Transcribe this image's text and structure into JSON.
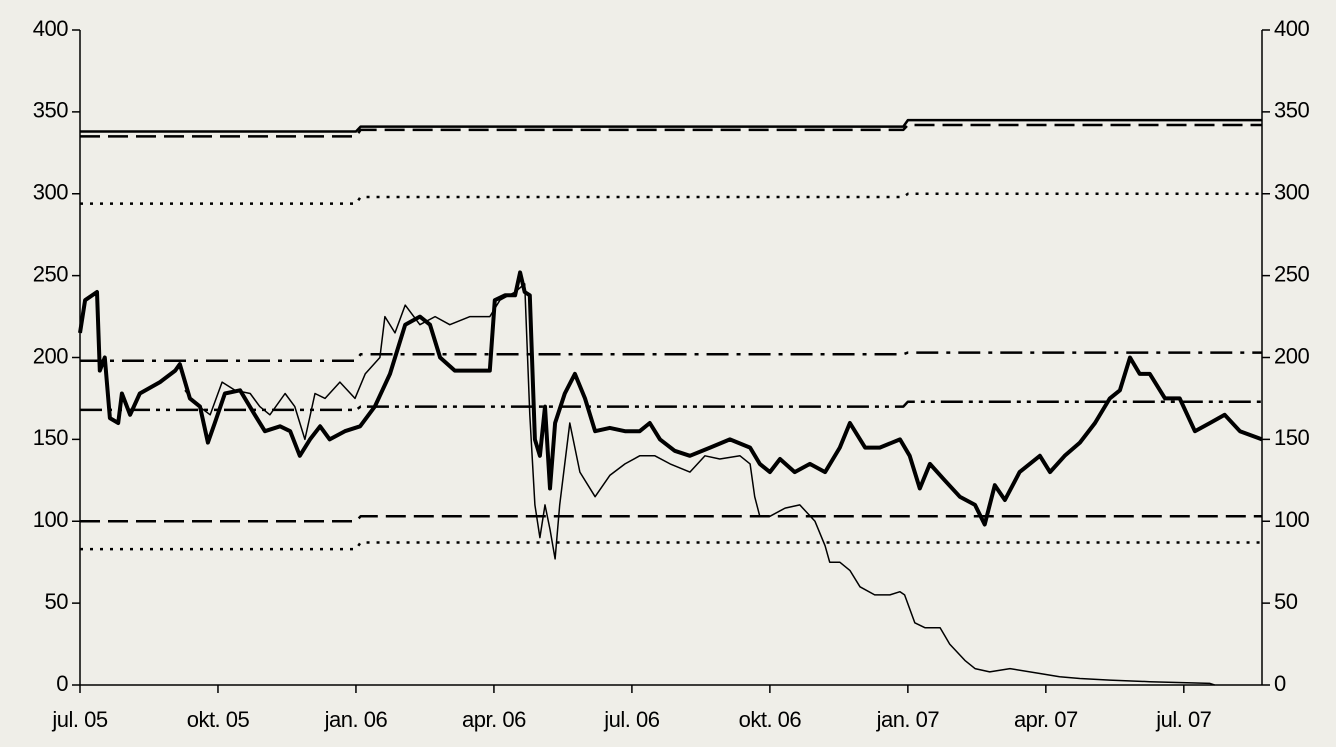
{
  "chart_data": {
    "type": "line",
    "xlim": [
      0,
      25.7
    ],
    "xticks": [
      {
        "value": 0,
        "label": "jul. 05"
      },
      {
        "value": 3,
        "label": "okt. 05"
      },
      {
        "value": 6,
        "label": "jan. 06"
      },
      {
        "value": 9,
        "label": "apr. 06"
      },
      {
        "value": 12,
        "label": "jul. 06"
      },
      {
        "value": 15,
        "label": "okt. 06"
      },
      {
        "value": 18,
        "label": "jan. 07"
      },
      {
        "value": 21,
        "label": "apr. 07"
      },
      {
        "value": 24,
        "label": "jul. 07"
      }
    ],
    "ylim": [
      0,
      400
    ],
    "yticks": [
      0,
      50,
      100,
      150,
      200,
      250,
      300,
      350,
      400
    ],
    "y2lim": [
      0,
      400
    ],
    "y2ticks": [
      0,
      50,
      100,
      150,
      200,
      250,
      300,
      350,
      400
    ],
    "series": [
      {
        "color": "#000000",
        "width": 4,
        "style": "solid",
        "x": [
          0,
          0.11,
          0.37,
          0.43,
          0.54,
          0.65,
          0.83,
          0.91,
          1.09,
          1.3,
          1.74,
          2.07,
          2.17,
          2.39,
          2.61,
          2.78,
          2.93,
          3.15,
          3.48,
          3.8,
          4.02,
          4.35,
          4.57,
          4.78,
          5,
          5.22,
          5.43,
          5.76,
          6.09,
          6.41,
          6.74,
          7.07,
          7.39,
          7.61,
          7.83,
          8.15,
          8.91,
          9.02,
          9.24,
          9.46,
          9.57,
          9.67,
          9.78,
          9.89,
          10,
          10.11,
          10.22,
          10.33,
          10.54,
          10.76,
          10.98,
          11.2,
          11.52,
          11.85,
          12.17,
          12.39,
          12.61,
          12.93,
          13.26,
          13.7,
          14.13,
          14.57,
          14.78,
          15,
          15.22,
          15.54,
          15.87,
          16.2,
          16.52,
          16.74,
          17.07,
          17.39,
          17.83,
          18.04,
          18.26,
          18.48,
          18.8,
          19.13,
          19.46,
          19.67,
          19.89,
          20.11,
          20.43,
          20.87,
          21.09,
          21.41,
          21.74,
          22.07,
          22.39,
          22.61,
          22.83,
          23.04,
          23.26,
          23.59,
          23.91,
          24.24,
          24.57,
          24.89,
          25.22,
          25.7
        ],
        "values": [
          215,
          235,
          240,
          192,
          200,
          163,
          160,
          178,
          165,
          178,
          185,
          192,
          196,
          175,
          170,
          148,
          160,
          178,
          180,
          165,
          155,
          158,
          155,
          140,
          150,
          158,
          150,
          155,
          158,
          170,
          190,
          220,
          225,
          220,
          200,
          192,
          192,
          235,
          238,
          238,
          252,
          240,
          238,
          150,
          140,
          170,
          120,
          160,
          178,
          190,
          175,
          155,
          157,
          155,
          155,
          160,
          150,
          143,
          140,
          145,
          150,
          145,
          135,
          130,
          138,
          130,
          135,
          130,
          145,
          160,
          145,
          145,
          150,
          140,
          120,
          135,
          125,
          115,
          110,
          98,
          122,
          113,
          130,
          140,
          130,
          140,
          148,
          160,
          175,
          180,
          200,
          190,
          190,
          175,
          175,
          155,
          160,
          165,
          155,
          150
        ]
      },
      {
        "color": "#000000",
        "width": 1.5,
        "style": "solid",
        "x": [
          2.28,
          2.5,
          2.83,
          3.09,
          3.37,
          3.7,
          3.91,
          4.13,
          4.46,
          4.67,
          4.89,
          5.11,
          5.33,
          5.65,
          5.98,
          6.2,
          6.52,
          6.63,
          6.85,
          7.07,
          7.39,
          7.72,
          8.04,
          8.48,
          8.91,
          9.13,
          9.46,
          9.67,
          9.78,
          9.89,
          10,
          10.11,
          10.22,
          10.33,
          10.43,
          10.65,
          10.87,
          11.2,
          11.52,
          11.85,
          12.17,
          12.5,
          12.83,
          13.26,
          13.59,
          13.91,
          14.35,
          14.57,
          14.67,
          14.78,
          15,
          15.33,
          15.65,
          15.98,
          16.2,
          16.3,
          16.52,
          16.74,
          16.96,
          17.28,
          17.61,
          17.83,
          17.93,
          18.15,
          18.37,
          18.7,
          18.91,
          19.24,
          19.46,
          19.78,
          20.22,
          20.87,
          21.3,
          21.74,
          22.39,
          23.26,
          24.57,
          24.67
        ],
        "values": [
          180,
          172,
          165,
          185,
          180,
          178,
          170,
          165,
          178,
          170,
          150,
          178,
          175,
          185,
          175,
          190,
          200,
          225,
          215,
          232,
          220,
          225,
          220,
          225,
          225,
          235,
          240,
          245,
          165,
          110,
          90,
          110,
          95,
          77,
          110,
          160,
          130,
          115,
          128,
          135,
          140,
          140,
          135,
          130,
          140,
          138,
          140,
          135,
          115,
          103,
          103,
          108,
          110,
          100,
          85,
          75,
          75,
          70,
          60,
          55,
          55,
          57,
          55,
          38,
          35,
          35,
          25,
          15,
          10,
          8,
          10,
          7,
          5,
          4,
          3,
          2,
          1,
          0
        ]
      },
      {
        "color": "#000000",
        "width": 2.5,
        "style": "solid",
        "x": [
          0,
          6,
          6.1,
          17.9,
          18,
          25.7
        ],
        "values": [
          338,
          338,
          341,
          341,
          345,
          345
        ]
      },
      {
        "color": "#000000",
        "width": 2.5,
        "style": "dashed",
        "x": [
          0,
          6,
          6.1,
          17.9,
          18,
          25.7
        ],
        "values": [
          335,
          335,
          339,
          339,
          342,
          342
        ]
      },
      {
        "color": "#000000",
        "width": 2.5,
        "style": "dotted",
        "x": [
          0,
          6,
          6.1,
          17.9,
          18,
          25.7
        ],
        "values": [
          294,
          294,
          298,
          298,
          300,
          300
        ]
      },
      {
        "color": "#000000",
        "width": 2.5,
        "style": "dashdot",
        "x": [
          0,
          6,
          6.1,
          17.9,
          18,
          25.7
        ],
        "values": [
          198,
          198,
          202,
          202,
          203,
          203
        ]
      },
      {
        "color": "#000000",
        "width": 2.5,
        "style": "dashdotdot",
        "x": [
          0,
          6,
          6.1,
          17.9,
          18,
          25.7
        ],
        "values": [
          168,
          168,
          170,
          170,
          173,
          173
        ]
      },
      {
        "color": "#000000",
        "width": 2.5,
        "style": "dashed",
        "x": [
          0,
          6,
          6.1,
          17.9,
          18,
          25.7
        ],
        "values": [
          100,
          100,
          103,
          103,
          103,
          103
        ]
      },
      {
        "color": "#000000",
        "width": 2.5,
        "style": "dotted",
        "x": [
          0,
          6,
          6.1,
          17.9,
          18,
          25.7
        ],
        "values": [
          83,
          83,
          87,
          87,
          87,
          87
        ]
      }
    ]
  }
}
